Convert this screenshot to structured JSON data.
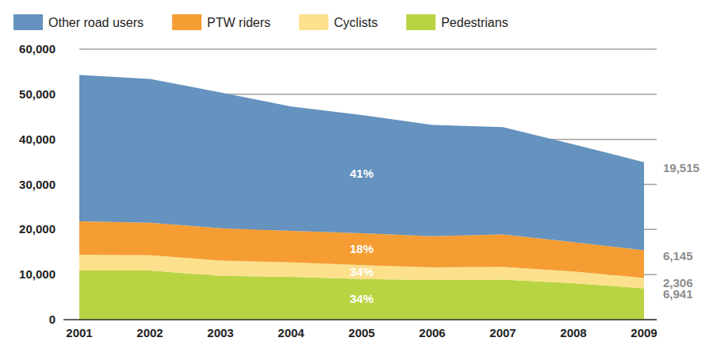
{
  "chart_data": {
    "type": "area",
    "stacked": true,
    "grid": true,
    "legend": "top",
    "data_labels": true,
    "categories": [
      "2001",
      "2002",
      "2003",
      "2004",
      "2005",
      "2006",
      "2007",
      "2008",
      "2009"
    ],
    "ylim": [
      0,
      60000
    ],
    "yticks": [
      0,
      {
        "value": 10000,
        "label": "10,000"
      },
      {
        "value": 20000,
        "label": "20,000"
      },
      {
        "value": 30000,
        "label": "30,000"
      },
      {
        "value": 40000,
        "label": "40,000"
      },
      {
        "value": 50000,
        "label": "50,000"
      },
      {
        "value": 60000,
        "label": "60,000"
      }
    ],
    "series": [
      {
        "name": "Other road users",
        "color": "#6592be",
        "values": [
          32500,
          31900,
          30100,
          27600,
          26200,
          24700,
          23800,
          21700,
          19515
        ],
        "value_labels": [
          null,
          null,
          null,
          null,
          null,
          null,
          null,
          null,
          "19,515"
        ]
      },
      {
        "name": "PTW riders",
        "color": "#f59d33",
        "values": [
          7400,
          7200,
          7200,
          7000,
          7100,
          6900,
          7200,
          6500,
          6145
        ],
        "value_labels": [
          null,
          null,
          null,
          null,
          null,
          null,
          null,
          null,
          "6,145"
        ]
      },
      {
        "name": "Cyclists",
        "color": "#fde08b",
        "values": [
          3500,
          3400,
          3400,
          3200,
          3100,
          2800,
          2800,
          2600,
          2306
        ],
        "value_labels": [
          null,
          null,
          null,
          null,
          null,
          null,
          null,
          null,
          "2,306"
        ]
      },
      {
        "name": "Pedestrians",
        "color": "#b8d443",
        "values": [
          10900,
          10900,
          9700,
          9500,
          9000,
          8800,
          8900,
          8100,
          6941
        ],
        "value_labels": [
          null,
          null,
          null,
          null,
          null,
          null,
          null,
          null,
          "6,941"
        ]
      }
    ],
    "annotations": [
      {
        "text": "41%",
        "series": "Other road users",
        "category": "2005"
      },
      {
        "text": "18%",
        "series": "PTW riders",
        "category": "2005"
      },
      {
        "text": "34%",
        "series": "Cyclists",
        "category": "2005"
      },
      {
        "text": "34%",
        "series": "Pedestrians",
        "category": "2005"
      }
    ]
  }
}
